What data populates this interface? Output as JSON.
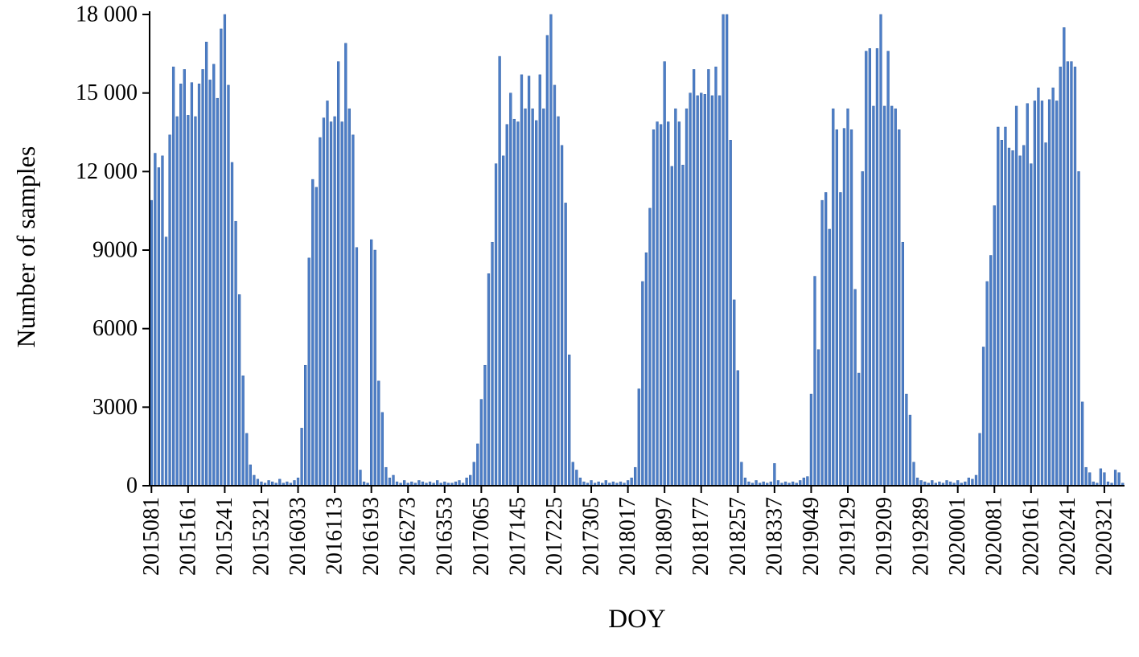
{
  "chart_data": {
    "type": "bar",
    "title": "",
    "xlabel": "DOY",
    "ylabel": "Number of samples",
    "bar_color": "#4d7ec7",
    "bar_edge_color": "#3a66a8",
    "axis_color": "#000000",
    "ylim": [
      0,
      18000
    ],
    "grid": false,
    "legend": "none",
    "y_ticks": [
      0,
      3000,
      6000,
      9000,
      12000,
      15000,
      18000
    ],
    "y_tick_labels": [
      "0",
      "3000",
      "6000",
      "9000",
      "12 000",
      "15 000",
      "18 000"
    ],
    "x_tick_every": 10,
    "x_tick_labels": [
      "2015081",
      "2015161",
      "2015241",
      "2015321",
      "2016033",
      "2016113",
      "2016193",
      "2016273",
      "2016353",
      "2017065",
      "2017145",
      "2017225",
      "2017305",
      "2018017",
      "2018097",
      "2018177",
      "2018257",
      "2018337",
      "2019049",
      "2019129",
      "2019209",
      "2019289",
      "2020001",
      "2020081",
      "2020161",
      "2020241",
      "2020321"
    ],
    "x_start_label": "2015081",
    "x_step_days": 8,
    "values": [
      10900,
      12700,
      12150,
      12600,
      9500,
      13400,
      16000,
      14100,
      15350,
      15900,
      14150,
      15400,
      14100,
      15350,
      15900,
      16950,
      15500,
      16100,
      14800,
      17450,
      18000,
      15300,
      12350,
      10100,
      7300,
      4200,
      2000,
      800,
      400,
      250,
      150,
      100,
      200,
      150,
      100,
      250,
      100,
      150,
      100,
      200,
      300,
      2200,
      4600,
      8700,
      11700,
      11400,
      13300,
      14050,
      14700,
      13900,
      14100,
      16200,
      13900,
      16900,
      14400,
      13400,
      9100,
      600,
      150,
      100,
      9400,
      9000,
      4000,
      2800,
      700,
      300,
      400,
      150,
      100,
      200,
      100,
      150,
      100,
      200,
      150,
      100,
      150,
      100,
      200,
      100,
      150,
      100,
      100,
      150,
      200,
      100,
      300,
      400,
      900,
      1600,
      3300,
      4600,
      8100,
      9300,
      12300,
      16400,
      12600,
      13800,
      15000,
      14000,
      13900,
      15700,
      14400,
      15650,
      14400,
      13950,
      15700,
      14400,
      17200,
      18000,
      15300,
      14100,
      13000,
      10800,
      5000,
      900,
      600,
      300,
      150,
      100,
      200,
      100,
      150,
      100,
      200,
      100,
      150,
      100,
      150,
      100,
      200,
      300,
      700,
      3700,
      7800,
      8900,
      10600,
      13600,
      13900,
      13800,
      16200,
      13900,
      12200,
      14400,
      13900,
      12250,
      14400,
      15000,
      15900,
      14900,
      15000,
      14950,
      15900,
      14900,
      16000,
      14900,
      18000,
      18000,
      13200,
      7100,
      4400,
      900,
      300,
      150,
      100,
      200,
      100,
      150,
      100,
      150,
      850,
      200,
      100,
      150,
      100,
      150,
      100,
      200,
      300,
      350,
      3500,
      8000,
      5200,
      10900,
      11200,
      9800,
      14400,
      13600,
      11200,
      13650,
      14400,
      13600,
      7500,
      4300,
      12000,
      16600,
      16700,
      14500,
      16700,
      18000,
      14500,
      16600,
      14500,
      14400,
      13600,
      9300,
      3500,
      2700,
      900,
      300,
      200,
      150,
      100,
      200,
      100,
      150,
      100,
      200,
      150,
      100,
      200,
      100,
      150,
      300,
      250,
      400,
      2000,
      5300,
      7800,
      8800,
      10700,
      13700,
      13200,
      13700,
      12900,
      12800,
      14500,
      12600,
      13000,
      14600,
      12300,
      14700,
      15200,
      14700,
      13100,
      14750,
      15200,
      14700,
      16000,
      17500,
      16200,
      16200,
      16000,
      12000,
      3200,
      700,
      500,
      150,
      100,
      650,
      500,
      150,
      100,
      600,
      500,
      100
    ]
  }
}
